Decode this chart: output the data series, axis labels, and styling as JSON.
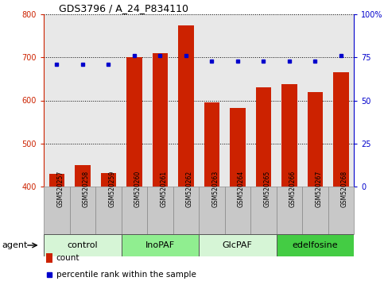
{
  "title": "GDS3796 / A_24_P834110",
  "samples": [
    "GSM520257",
    "GSM520258",
    "GSM520259",
    "GSM520260",
    "GSM520261",
    "GSM520262",
    "GSM520263",
    "GSM520264",
    "GSM520265",
    "GSM520266",
    "GSM520267",
    "GSM520268"
  ],
  "count_values": [
    430,
    450,
    432,
    700,
    710,
    775,
    595,
    582,
    630,
    637,
    620,
    665
  ],
  "percentile_values": [
    71,
    71,
    71,
    76,
    76,
    76,
    73,
    73,
    73,
    73,
    73,
    76
  ],
  "groups": [
    {
      "label": "control",
      "start": 0,
      "end": 3,
      "color": "#d6f5d6"
    },
    {
      "label": "InoPAF",
      "start": 3,
      "end": 6,
      "color": "#90ee90"
    },
    {
      "label": "GlcPAF",
      "start": 6,
      "end": 9,
      "color": "#d6f5d6"
    },
    {
      "label": "edelfosine",
      "start": 9,
      "end": 12,
      "color": "#44cc44"
    }
  ],
  "bar_color": "#cc2200",
  "dot_color": "#0000cc",
  "left_ylim": [
    400,
    800
  ],
  "left_yticks": [
    400,
    500,
    600,
    700,
    800
  ],
  "right_ylim": [
    0,
    100
  ],
  "right_yticks": [
    0,
    25,
    50,
    75,
    100
  ],
  "right_yticklabels": [
    "0",
    "25",
    "50",
    "75",
    "100%"
  ],
  "bar_width": 0.6,
  "background_color": "#ffffff",
  "plot_bg_color": "#e8e8e8",
  "sample_box_color": "#c8c8c8",
  "grid_color": "#000000",
  "tick_color_left": "#cc2200",
  "tick_color_right": "#0000cc",
  "legend_count_label": "count",
  "legend_pct_label": "percentile rank within the sample",
  "agent_label": "agent"
}
